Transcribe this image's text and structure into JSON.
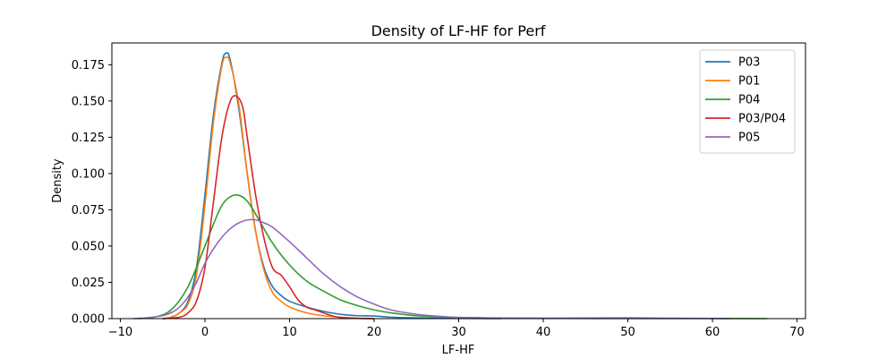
{
  "chart_data": {
    "type": "line",
    "title": "Density of LF-HF for Perf",
    "xlabel": "LF-HF",
    "ylabel": "Density",
    "xlim": [
      -11,
      71
    ],
    "ylim": [
      0,
      0.19
    ],
    "xticks": [
      -10,
      0,
      10,
      20,
      30,
      40,
      50,
      60,
      70
    ],
    "yticks": [
      0.0,
      0.025,
      0.05,
      0.075,
      0.1,
      0.125,
      0.15,
      0.175
    ],
    "ytick_labels": [
      "0.000",
      "0.025",
      "0.050",
      "0.075",
      "0.100",
      "0.125",
      "0.150",
      "0.175"
    ],
    "grid": false,
    "legend_position": "top-right",
    "series": [
      {
        "name": "P03",
        "color": "#1f77b4",
        "points": [
          [
            -5,
            0
          ],
          [
            -4,
            0.001
          ],
          [
            -3,
            0.004
          ],
          [
            -2,
            0.012
          ],
          [
            -1,
            0.035
          ],
          [
            0,
            0.085
          ],
          [
            1,
            0.14
          ],
          [
            2,
            0.176
          ],
          [
            2.5,
            0.183
          ],
          [
            3,
            0.178
          ],
          [
            4,
            0.145
          ],
          [
            5,
            0.1
          ],
          [
            6,
            0.06
          ],
          [
            7,
            0.035
          ],
          [
            8,
            0.022
          ],
          [
            9,
            0.016
          ],
          [
            10,
            0.012
          ],
          [
            12,
            0.008
          ],
          [
            14,
            0.005
          ],
          [
            16,
            0.003
          ],
          [
            18,
            0.002
          ],
          [
            20,
            0.0018
          ],
          [
            22,
            0.001
          ],
          [
            25,
            0.0005
          ],
          [
            30,
            0.0002
          ],
          [
            35,
            0
          ]
        ]
      },
      {
        "name": "P01",
        "color": "#ff7f0e",
        "points": [
          [
            -5,
            0
          ],
          [
            -4,
            0.001
          ],
          [
            -3,
            0.004
          ],
          [
            -2,
            0.01
          ],
          [
            -1,
            0.03
          ],
          [
            0,
            0.078
          ],
          [
            1,
            0.135
          ],
          [
            2,
            0.174
          ],
          [
            2.5,
            0.18
          ],
          [
            3,
            0.176
          ],
          [
            4,
            0.148
          ],
          [
            5,
            0.1
          ],
          [
            6,
            0.06
          ],
          [
            7,
            0.033
          ],
          [
            8,
            0.018
          ],
          [
            9,
            0.012
          ],
          [
            10,
            0.008
          ],
          [
            12,
            0.004
          ],
          [
            14,
            0.002
          ],
          [
            16,
            0.001
          ],
          [
            18,
            0.0003
          ],
          [
            20,
            0
          ]
        ]
      },
      {
        "name": "P04",
        "color": "#2ca02c",
        "points": [
          [
            -8,
            0
          ],
          [
            -6,
            0.001
          ],
          [
            -4,
            0.006
          ],
          [
            -2,
            0.022
          ],
          [
            0,
            0.05
          ],
          [
            1,
            0.065
          ],
          [
            2,
            0.078
          ],
          [
            3,
            0.084
          ],
          [
            4,
            0.085
          ],
          [
            5,
            0.081
          ],
          [
            6,
            0.072
          ],
          [
            8,
            0.052
          ],
          [
            10,
            0.037
          ],
          [
            12,
            0.026
          ],
          [
            14,
            0.019
          ],
          [
            16,
            0.013
          ],
          [
            18,
            0.009
          ],
          [
            20,
            0.006
          ],
          [
            22,
            0.004
          ],
          [
            25,
            0.002
          ],
          [
            30,
            0.0008
          ],
          [
            35,
            0.0004
          ],
          [
            40,
            0.0002
          ],
          [
            50,
            0.0001
          ],
          [
            60,
            0.0001
          ],
          [
            66.5,
            0
          ]
        ]
      },
      {
        "name": "P03/P04",
        "color": "#d62728",
        "points": [
          [
            -5,
            0
          ],
          [
            -3,
            0.001
          ],
          [
            -2,
            0.004
          ],
          [
            -1,
            0.012
          ],
          [
            0,
            0.035
          ],
          [
            1,
            0.08
          ],
          [
            2,
            0.125
          ],
          [
            3,
            0.15
          ],
          [
            3.8,
            0.153
          ],
          [
            4.5,
            0.145
          ],
          [
            5,
            0.125
          ],
          [
            6,
            0.085
          ],
          [
            7,
            0.055
          ],
          [
            8,
            0.035
          ],
          [
            9,
            0.03
          ],
          [
            10,
            0.022
          ],
          [
            11,
            0.013
          ],
          [
            12,
            0.008
          ],
          [
            13,
            0.006
          ],
          [
            14,
            0.004
          ],
          [
            15,
            0.002
          ],
          [
            16,
            0.0008
          ],
          [
            18,
            0.0002
          ],
          [
            20,
            0
          ]
        ]
      },
      {
        "name": "P05",
        "color": "#9467bd",
        "points": [
          [
            -8.5,
            0
          ],
          [
            -7,
            0.0005
          ],
          [
            -5,
            0.002
          ],
          [
            -4,
            0.004
          ],
          [
            -3,
            0.008
          ],
          [
            -2,
            0.015
          ],
          [
            -1,
            0.025
          ],
          [
            0,
            0.038
          ],
          [
            1,
            0.048
          ],
          [
            2,
            0.056
          ],
          [
            3,
            0.062
          ],
          [
            4,
            0.066
          ],
          [
            5,
            0.068
          ],
          [
            6,
            0.068
          ],
          [
            7,
            0.066
          ],
          [
            8,
            0.063
          ],
          [
            10,
            0.053
          ],
          [
            12,
            0.042
          ],
          [
            14,
            0.031
          ],
          [
            16,
            0.022
          ],
          [
            18,
            0.015
          ],
          [
            20,
            0.01
          ],
          [
            22,
            0.006
          ],
          [
            25,
            0.003
          ],
          [
            28,
            0.0015
          ],
          [
            30,
            0.0008
          ],
          [
            35,
            0.0004
          ],
          [
            40,
            0.0003
          ],
          [
            50,
            0.0005
          ],
          [
            55,
            0.0003
          ],
          [
            60,
            0.0001
          ],
          [
            62,
            0
          ]
        ]
      }
    ]
  }
}
